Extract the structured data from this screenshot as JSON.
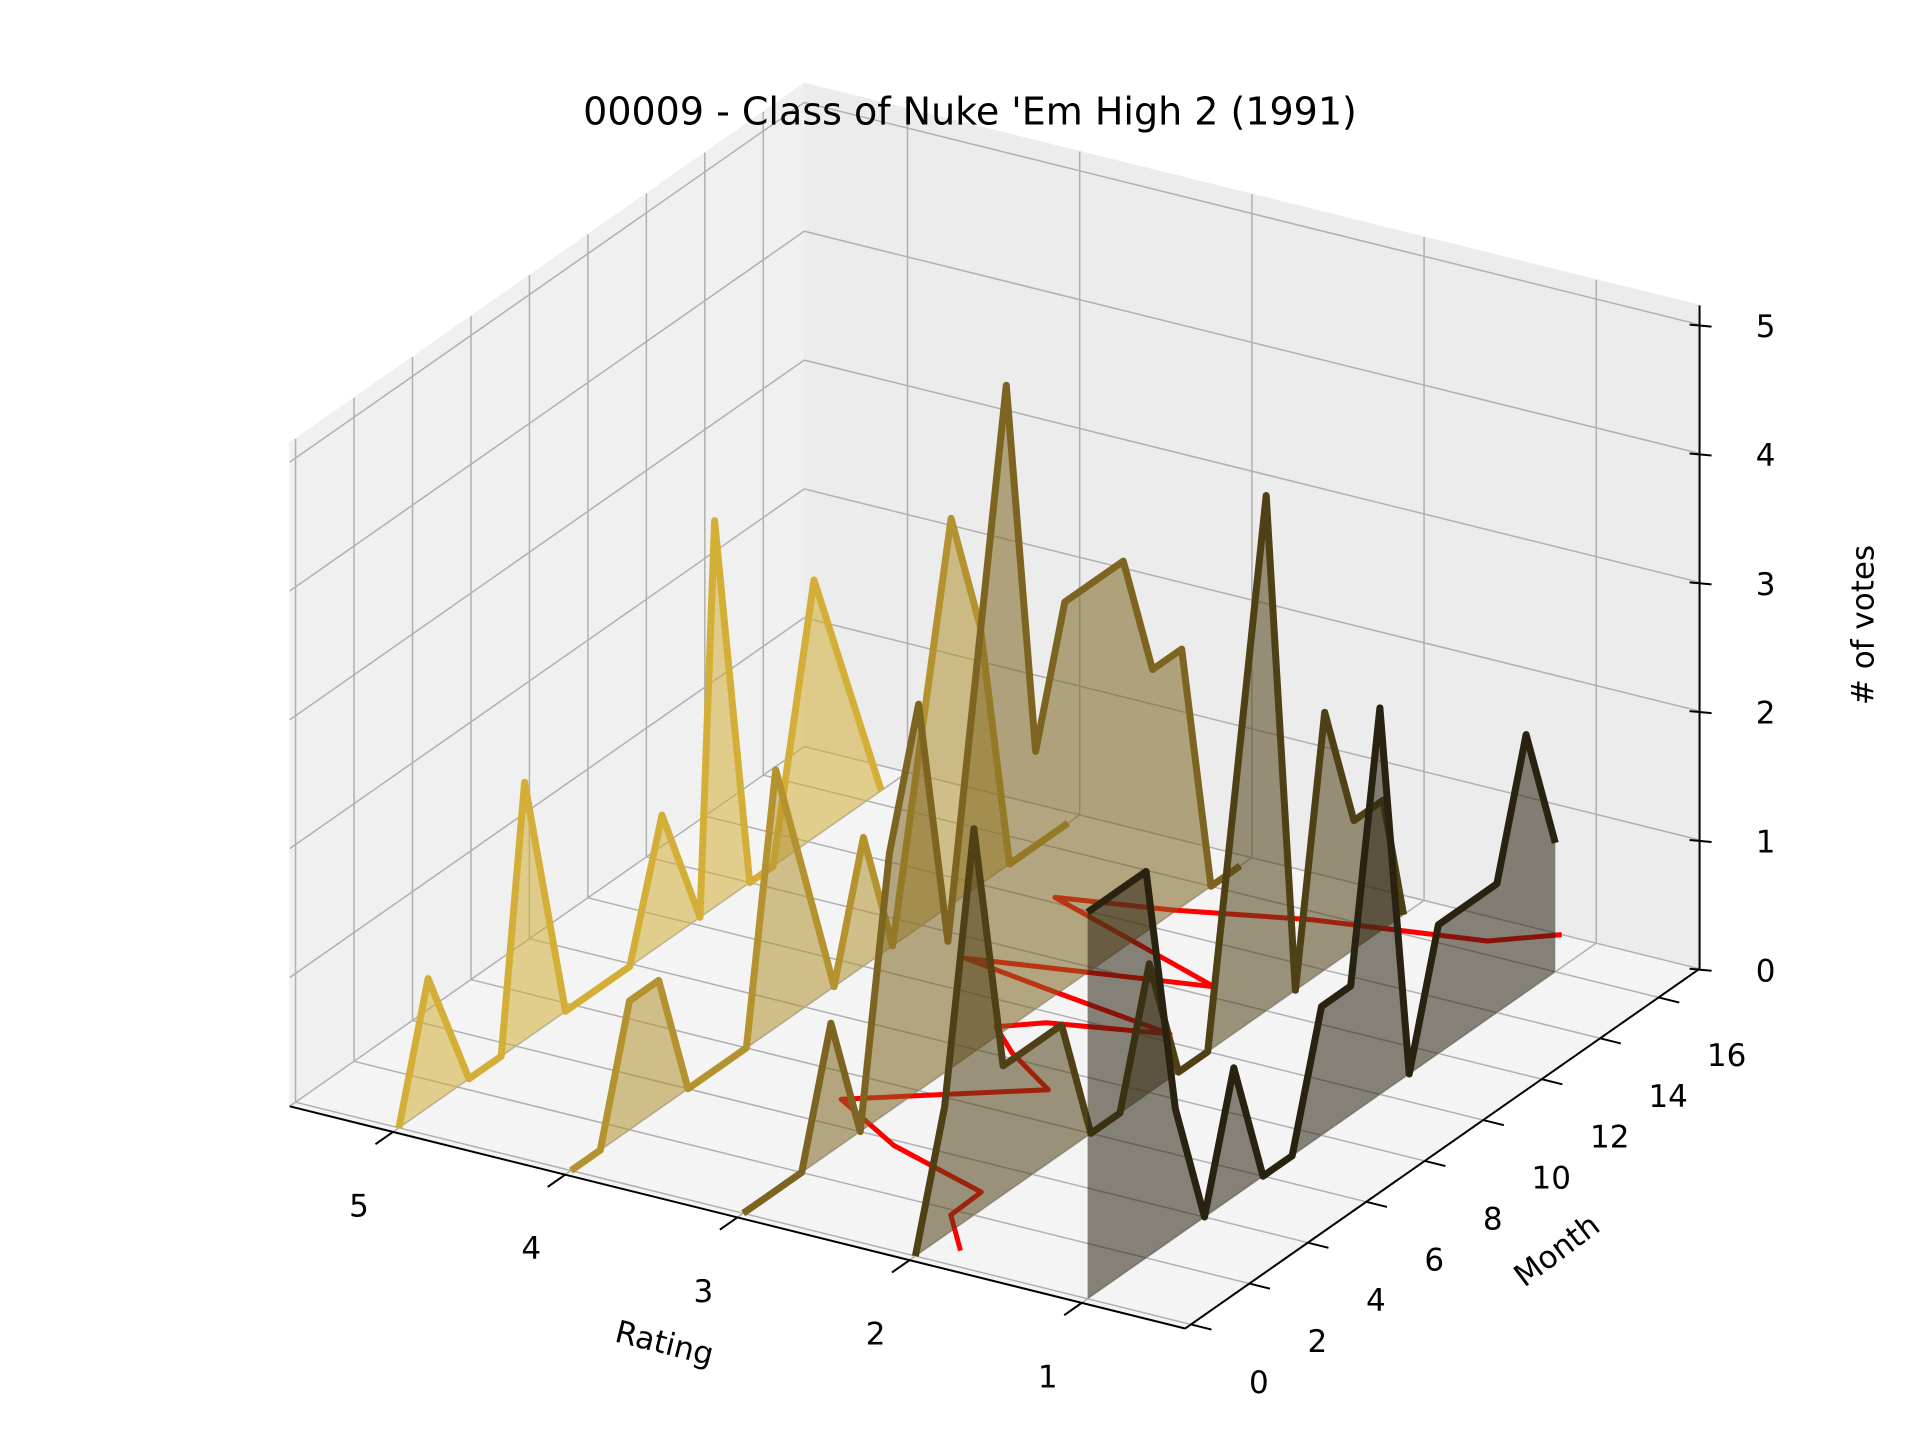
{
  "chart_data": {
    "type": "line3d",
    "title": "00009 - Class of Nuke 'Em High 2 (1991)",
    "xlabel": "Rating",
    "ylabel": "Month",
    "zlabel": "# of votes",
    "xlim": [
      5.6,
      0.4
    ],
    "xticks": [
      5,
      4,
      3,
      2,
      1
    ],
    "ylim": [
      -0.2,
      17.4
    ],
    "yticks": [
      0,
      2,
      4,
      6,
      8,
      10,
      12,
      14,
      16
    ],
    "zlim": [
      0,
      5.15
    ],
    "zticks": [
      0,
      1,
      2,
      3,
      4,
      5
    ],
    "grid": true,
    "series": [
      {
        "rating": 5,
        "color": "#d4af37",
        "x": [
          0,
          1,
          2.4,
          3.5,
          4.3,
          5.7,
          7.9,
          9,
          10.3,
          10.8,
          12,
          12.8,
          14.2,
          16.5
        ],
        "values": [
          0,
          1,
          0,
          0,
          2,
          0,
          0,
          1,
          0,
          3,
          0,
          0,
          2,
          0
        ]
      },
      {
        "rating": 4,
        "color": "#b3922f",
        "x": [
          0,
          1,
          2,
          3,
          4,
          6,
          7,
          8,
          9,
          10,
          11,
          13,
          14,
          15,
          17
        ],
        "values": [
          0,
          0,
          1,
          1,
          0,
          0,
          2,
          1,
          0,
          1,
          0,
          3,
          2,
          0,
          0
        ]
      },
      {
        "rating": 3,
        "color": "#7d6521",
        "x": [
          0,
          1,
          2,
          3,
          4,
          5,
          6,
          7,
          9,
          10,
          11,
          13,
          14,
          15,
          16,
          17
        ],
        "values": [
          0,
          0,
          0,
          1,
          0,
          2,
          3,
          1,
          5,
          2,
          3,
          3,
          2,
          2,
          0,
          0
        ]
      },
      {
        "rating": 2,
        "color": "#4f4015",
        "x": [
          0,
          1,
          2,
          3,
          4,
          5,
          6,
          7,
          8,
          9,
          10,
          11,
          12,
          13,
          14,
          15,
          16,
          16.7
        ],
        "values": [
          0,
          1,
          3,
          1,
          1,
          1,
          0,
          0,
          1,
          0,
          0,
          2,
          4,
          0,
          2,
          1,
          1,
          0
        ]
      },
      {
        "rating": 1,
        "color": "#2a2210",
        "x": [
          0,
          1,
          2,
          3,
          4,
          5,
          6,
          7,
          8,
          9,
          10,
          11,
          12,
          14,
          15,
          16
        ],
        "values": [
          3,
          3,
          3,
          1,
          0,
          1,
          0,
          0,
          1,
          1,
          3,
          0,
          1,
          1,
          2,
          1
        ]
      }
    ],
    "mean_line": {
      "color": "#ff0000",
      "x": [
        0.6,
        1.8,
        2.9,
        3.8,
        5,
        7.2,
        8.2,
        9,
        9.6,
        10.3,
        10.8,
        11.2,
        12.4,
        14.2,
        14.8,
        15.7,
        16.5,
        17.4
      ],
      "values": [
        1.84,
        2.1,
        2.11,
        2.77,
        3.28,
        2.45,
        2.83,
        3.06,
        2.87,
        2.27,
        3.04,
        3.61,
        2.37,
        3.6,
        3.02,
        2.36,
        1.48,
        1.2
      ]
    }
  }
}
